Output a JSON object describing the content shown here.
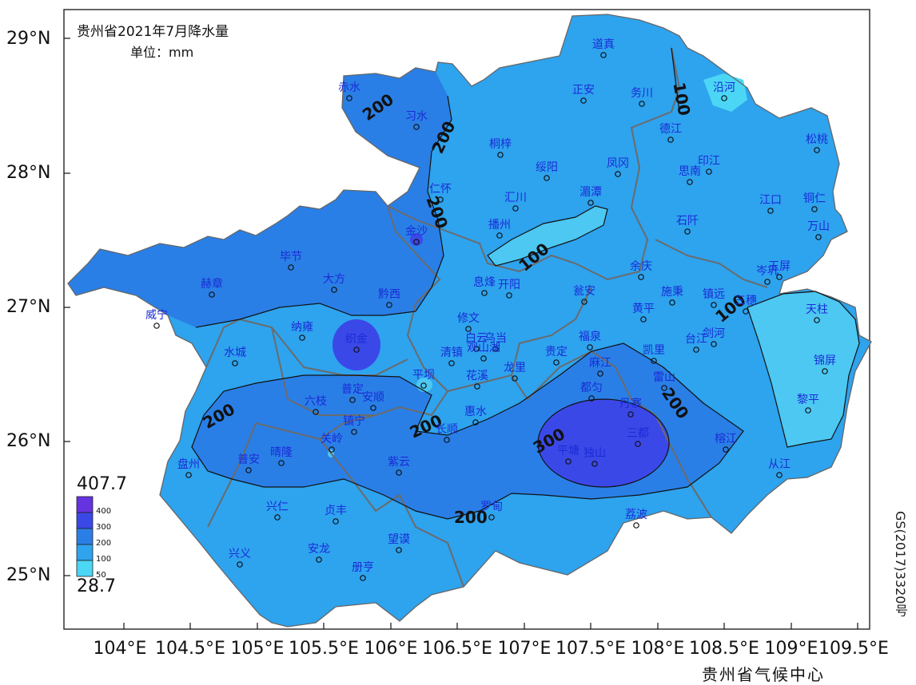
{
  "title": "贵州省2021年7月降水量",
  "unit": "单位：mm",
  "publisher": "贵州省气候中心",
  "map_number": "GS(2017)3320号",
  "lat_labels": [
    "29°N",
    "28°N",
    "27°N",
    "26°N",
    "25°N"
  ],
  "lon_labels": [
    "104°E",
    "104.5°E",
    "105°E",
    "105.5°E",
    "106°E",
    "106.5°E",
    "107°E",
    "107.5°E",
    "108°E",
    "108.5°E",
    "109°E",
    "109.5°E"
  ],
  "legend": {
    "max": "407.7",
    "min": "28.7",
    "ticks": [
      "400",
      "300",
      "200",
      "100",
      "50"
    ],
    "colors": [
      "#6633e0",
      "#3b48e8",
      "#2a7fe6",
      "#2ea3ee",
      "#4cd6f5"
    ]
  },
  "contour_labels": [
    "100",
    "200",
    "300"
  ],
  "stations": [
    {
      "name": "道真"
    },
    {
      "name": "沿河"
    },
    {
      "name": "赤水"
    },
    {
      "name": "习水"
    },
    {
      "name": "正安"
    },
    {
      "name": "务川"
    },
    {
      "name": "德江"
    },
    {
      "name": "松桃"
    },
    {
      "name": "桐梓"
    },
    {
      "name": "绥阳"
    },
    {
      "name": "凤冈"
    },
    {
      "name": "印江"
    },
    {
      "name": "思南"
    },
    {
      "name": "仁怀"
    },
    {
      "name": "汇川"
    },
    {
      "name": "湄潭"
    },
    {
      "name": "江口"
    },
    {
      "name": "铜仁"
    },
    {
      "name": "万山"
    },
    {
      "name": "金沙"
    },
    {
      "name": "播州"
    },
    {
      "name": "石阡"
    },
    {
      "name": "毕节"
    },
    {
      "name": "余庆"
    },
    {
      "name": "岑巩"
    },
    {
      "name": "玉屏"
    },
    {
      "name": "赫章"
    },
    {
      "name": "大方"
    },
    {
      "name": "息烽"
    },
    {
      "name": "开阳"
    },
    {
      "name": "瓮安"
    },
    {
      "name": "施秉"
    },
    {
      "name": "镇远"
    },
    {
      "name": "三穗"
    },
    {
      "name": "天柱"
    },
    {
      "name": "威宁"
    },
    {
      "name": "黔西"
    },
    {
      "name": "黄平"
    },
    {
      "name": "修文"
    },
    {
      "name": "纳雍"
    },
    {
      "name": "织金"
    },
    {
      "name": "白云"
    },
    {
      "name": "乌当"
    },
    {
      "name": "福泉"
    },
    {
      "name": "台江"
    },
    {
      "name": "剑河"
    },
    {
      "name": "水城"
    },
    {
      "name": "清镇"
    },
    {
      "name": "观山湖"
    },
    {
      "name": "贵定"
    },
    {
      "name": "凯里"
    },
    {
      "name": "麻江"
    },
    {
      "name": "锦屏"
    },
    {
      "name": "平坝"
    },
    {
      "name": "花溪"
    },
    {
      "name": "龙里"
    },
    {
      "name": "雷山"
    },
    {
      "name": "普定"
    },
    {
      "name": "安顺"
    },
    {
      "name": "六枝"
    },
    {
      "name": "都匀"
    },
    {
      "name": "丹寨"
    },
    {
      "name": "黎平"
    },
    {
      "name": "惠水"
    },
    {
      "name": "镇宁"
    },
    {
      "name": "关岭"
    },
    {
      "name": "长顺"
    },
    {
      "name": "三都"
    },
    {
      "name": "晴隆"
    },
    {
      "name": "普安"
    },
    {
      "name": "平塘"
    },
    {
      "name": "独山"
    },
    {
      "name": "榕江"
    },
    {
      "name": "盘州"
    },
    {
      "name": "紫云"
    },
    {
      "name": "从江"
    },
    {
      "name": "兴仁"
    },
    {
      "name": "贞丰"
    },
    {
      "name": "罗甸"
    },
    {
      "name": "荔波"
    },
    {
      "name": "兴义"
    },
    {
      "name": "安龙"
    },
    {
      "name": "望谟"
    },
    {
      "name": "册亨"
    }
  ]
}
